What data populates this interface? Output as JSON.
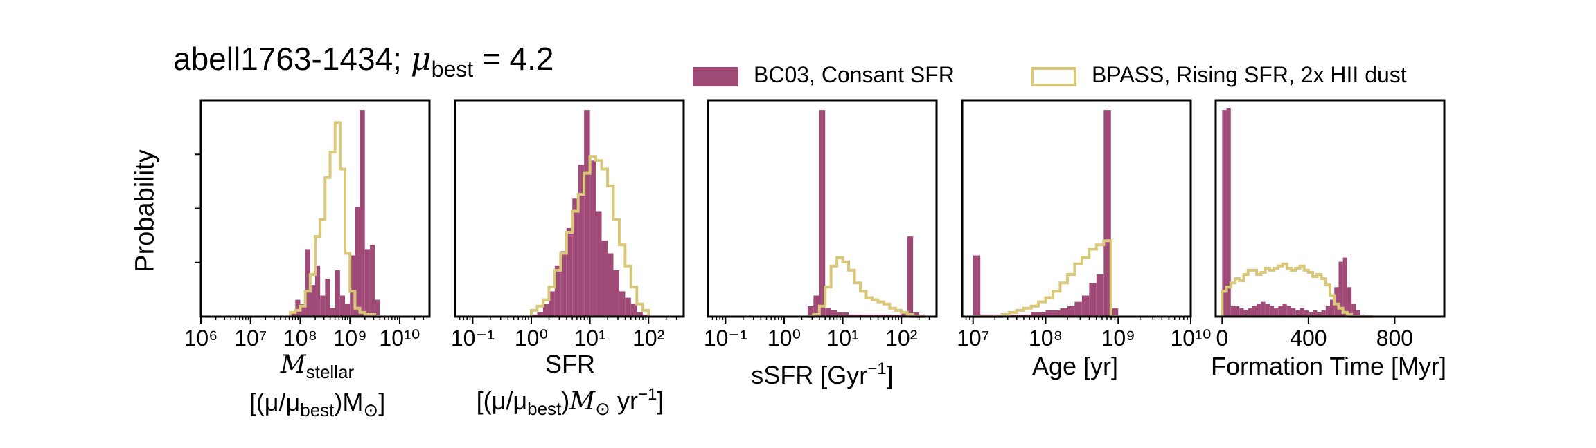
{
  "title": {
    "prefix": "abell1763-1434; ",
    "mu": "μ",
    "sub": "best",
    "suffix": " = 4.2"
  },
  "legend": [
    {
      "label": "BC03, Consant SFR",
      "color": "#A04A77",
      "style": "filled"
    },
    {
      "label": "BPASS, Rising SFR, 2x HII dust",
      "color": "#D9C87A",
      "style": "step"
    }
  ],
  "ylabel": "Probability",
  "xlabels": {
    "mstellar": {
      "main": "M",
      "sub": "stellar",
      "line2a": "[(μ/μ",
      "line2sub": "best",
      "line2b": ")M",
      "line2c": "⊙",
      "line2d": "]"
    },
    "sfr": {
      "line1": "SFR",
      "line2a": "[(μ/μ",
      "line2sub": "best",
      "line2b": ")",
      "line2c": "M",
      "line2d": "⊙",
      "line2e": " yr",
      "line2sup": "−1",
      "line2f": "]"
    },
    "ssfr": {
      "main": "sSFR [Gyr",
      "sup": "−1",
      "end": "]"
    },
    "age": {
      "main": "Age [yr]"
    },
    "formation": {
      "main": "Formation Time [Myr]"
    }
  },
  "colors": {
    "bc03": "#A04A77",
    "bpass": "#D9C87A"
  },
  "chart_data": [
    {
      "type": "bar",
      "name": "mstellar",
      "xscale": "log",
      "xlim": [
        6,
        10.6
      ],
      "xticks": [
        6,
        7,
        8,
        9,
        10
      ],
      "ticklabels": [
        "10⁶",
        "10⁷",
        "10⁸",
        "10⁹",
        "10¹⁰"
      ],
      "bins": {
        "start": 7.8,
        "width": 0.1,
        "n": 18
      },
      "series": [
        {
          "name": "BC03, Consant SFR",
          "values": [
            2,
            8,
            6,
            32,
            15,
            24,
            10,
            18,
            4,
            22,
            10,
            6,
            29,
            52,
            98,
            32,
            34,
            8
          ]
        },
        {
          "name": "BPASS, Rising SFR, 2x HII dust",
          "values": [
            2,
            3,
            5,
            12,
            20,
            38,
            46,
            66,
            78,
            92,
            70,
            30,
            12,
            4,
            2,
            1,
            1,
            0
          ]
        }
      ]
    },
    {
      "type": "bar",
      "name": "sfr",
      "xscale": "log",
      "xlim": [
        -1.3,
        2.6
      ],
      "xticks": [
        -1,
        0,
        1,
        2
      ],
      "ticklabels": [
        "10⁻¹",
        "10⁰",
        "10¹",
        "10²"
      ],
      "bins": {
        "start": 0.0,
        "width": 0.1,
        "n": 20
      },
      "series": [
        {
          "name": "BC03, Consant SFR",
          "values": [
            1,
            2,
            6,
            12,
            24,
            31,
            42,
            56,
            72,
            98,
            74,
            50,
            36,
            30,
            22,
            12,
            9,
            6,
            2,
            1
          ]
        },
        {
          "name": "BPASS, Rising SFR, 2x HII dust",
          "values": [
            3,
            5,
            8,
            14,
            22,
            30,
            40,
            50,
            58,
            68,
            76,
            74,
            70,
            62,
            46,
            34,
            24,
            14,
            6,
            3
          ]
        }
      ]
    },
    {
      "type": "bar",
      "name": "ssfr",
      "xscale": "log",
      "xlim": [
        -1.3,
        2.6
      ],
      "xticks": [
        -1,
        0,
        1,
        2
      ],
      "ticklabels": [
        "10⁻¹",
        "10⁰",
        "10¹",
        "10²"
      ],
      "bins": {
        "start": 0.4,
        "width": 0.1,
        "n": 20
      },
      "series": [
        {
          "name": "BC03, Consant SFR",
          "values": [
            5,
            10,
            98,
            4,
            3,
            2,
            2,
            1,
            1,
            1,
            1,
            1,
            1,
            1,
            1,
            1,
            2,
            38,
            2,
            1
          ]
        },
        {
          "name": "BPASS, Rising SFR, 2x HII dust",
          "values": [
            0,
            1,
            5,
            14,
            24,
            28,
            26,
            22,
            16,
            12,
            9,
            8,
            7,
            6,
            4,
            3,
            2,
            1,
            0,
            0
          ]
        }
      ]
    },
    {
      "type": "bar",
      "name": "age",
      "xscale": "log",
      "xlim": [
        6.85,
        10
      ],
      "xticks": [
        7,
        8,
        9,
        10
      ],
      "ticklabels": [
        "10⁷",
        "10⁸",
        "10⁹",
        "10¹⁰"
      ],
      "bins": {
        "start": 7.0,
        "width": 0.1,
        "n": 20
      },
      "series": [
        {
          "name": "BC03, Consant SFR",
          "values": [
            29,
            1,
            1,
            1,
            1,
            1,
            1,
            1,
            2,
            2,
            3,
            3,
            4,
            5,
            7,
            10,
            16,
            20,
            98,
            4
          ]
        },
        {
          "name": "BPASS, Rising SFR, 2x HII dust",
          "values": [
            0,
            0,
            0,
            0,
            1,
            2,
            3,
            4,
            5,
            7,
            9,
            12,
            16,
            20,
            25,
            28,
            32,
            34,
            36,
            0
          ]
        }
      ]
    },
    {
      "type": "bar",
      "name": "formation",
      "xscale": "linear",
      "xlim": [
        -30,
        1030
      ],
      "xticks": [
        0,
        400,
        800
      ],
      "ticklabels": [
        "0",
        "400",
        "800"
      ],
      "bins": {
        "start": 0,
        "width": 20,
        "n": 35
      },
      "series": [
        {
          "name": "BC03, Consant SFR",
          "values": [
            98,
            99,
            5,
            5,
            4,
            3,
            4,
            5,
            6,
            7,
            6,
            5,
            4,
            5,
            6,
            5,
            4,
            3,
            4,
            3,
            2,
            3,
            2,
            3,
            5,
            8,
            14,
            26,
            28,
            14,
            6,
            3,
            1,
            0,
            0
          ]
        },
        {
          "name": "BPASS, Rising SFR, 2x HII dust",
          "values": [
            12,
            14,
            16,
            18,
            17,
            20,
            22,
            22,
            20,
            21,
            23,
            22,
            23,
            24,
            25,
            23,
            22,
            23,
            24,
            22,
            21,
            19,
            20,
            18,
            15,
            10,
            6,
            4,
            2,
            1,
            0,
            0,
            0,
            0,
            0
          ]
        }
      ]
    }
  ]
}
